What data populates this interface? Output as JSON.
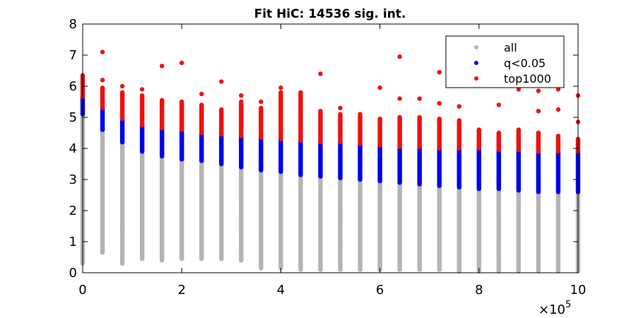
{
  "chart_data": {
    "type": "scatter",
    "title": "Fit HiC: 14536 sig. int.",
    "xlabel": "",
    "ylabel": "",
    "x_multiplier_label": "×10",
    "x_multiplier_exp": "5",
    "xlim": [
      0,
      10
    ],
    "ylim": [
      0,
      8
    ],
    "xticks": [
      0,
      2,
      4,
      6,
      8,
      10
    ],
    "yticks": [
      0,
      1,
      2,
      3,
      4,
      5,
      6,
      7,
      8
    ],
    "grid": false,
    "legend_position": "top-right",
    "colors": {
      "all": "#b4b4b4",
      "q": "#0000ee",
      "top": "#ee1111"
    },
    "legend": [
      "all",
      "q<0.05",
      "top1000"
    ],
    "series": [
      {
        "name": "all",
        "color": "#b4b4b4",
        "columns": [
          {
            "x": 0.0,
            "low": 0.3,
            "high": 5.1
          },
          {
            "x": 0.4,
            "low": 0.65,
            "high": 4.6
          },
          {
            "x": 0.8,
            "low": 0.3,
            "high": 4.2
          },
          {
            "x": 1.2,
            "low": 0.45,
            "high": 3.9
          },
          {
            "x": 1.6,
            "low": 0.4,
            "high": 3.75
          },
          {
            "x": 2.0,
            "low": 0.45,
            "high": 3.65
          },
          {
            "x": 2.4,
            "low": 0.45,
            "high": 3.6
          },
          {
            "x": 2.8,
            "low": 0.45,
            "high": 3.5
          },
          {
            "x": 3.2,
            "low": 0.4,
            "high": 3.4
          },
          {
            "x": 3.6,
            "low": 0.15,
            "high": 3.3
          },
          {
            "x": 4.0,
            "low": 0.15,
            "high": 3.25
          },
          {
            "x": 4.4,
            "low": 0.1,
            "high": 3.15
          },
          {
            "x": 4.8,
            "low": 0.1,
            "high": 3.1
          },
          {
            "x": 5.2,
            "low": 0.1,
            "high": 3.05
          },
          {
            "x": 5.6,
            "low": 0.1,
            "high": 3.0
          },
          {
            "x": 6.0,
            "low": 0.1,
            "high": 2.95
          },
          {
            "x": 6.4,
            "low": 0.1,
            "high": 2.9
          },
          {
            "x": 6.8,
            "low": 0.1,
            "high": 2.85
          },
          {
            "x": 7.2,
            "low": 0.1,
            "high": 2.8
          },
          {
            "x": 7.6,
            "low": 0.05,
            "high": 2.75
          },
          {
            "x": 8.0,
            "low": 0.05,
            "high": 2.7
          },
          {
            "x": 8.4,
            "low": 0.05,
            "high": 2.7
          },
          {
            "x": 8.8,
            "low": 0.05,
            "high": 2.65
          },
          {
            "x": 9.2,
            "low": 0.05,
            "high": 2.6
          },
          {
            "x": 9.6,
            "low": 0.05,
            "high": 2.6
          },
          {
            "x": 10.0,
            "low": 0.05,
            "high": 2.6
          }
        ]
      },
      {
        "name": "q<0.05",
        "color": "#0000ee",
        "columns": [
          {
            "x": 0.0,
            "low": 5.1,
            "high": 5.65
          },
          {
            "x": 0.4,
            "low": 4.6,
            "high": 5.3
          },
          {
            "x": 0.8,
            "low": 4.2,
            "high": 4.95
          },
          {
            "x": 1.2,
            "low": 3.9,
            "high": 4.75
          },
          {
            "x": 1.6,
            "low": 3.75,
            "high": 4.65
          },
          {
            "x": 2.0,
            "low": 3.65,
            "high": 4.6
          },
          {
            "x": 2.4,
            "low": 3.6,
            "high": 4.5
          },
          {
            "x": 2.8,
            "low": 3.5,
            "high": 4.45
          },
          {
            "x": 3.2,
            "low": 3.4,
            "high": 4.4
          },
          {
            "x": 3.6,
            "low": 3.3,
            "high": 4.35
          },
          {
            "x": 4.0,
            "low": 3.25,
            "high": 4.3
          },
          {
            "x": 4.4,
            "low": 3.15,
            "high": 4.25
          },
          {
            "x": 4.8,
            "low": 3.1,
            "high": 4.2
          },
          {
            "x": 5.2,
            "low": 3.05,
            "high": 4.2
          },
          {
            "x": 5.6,
            "low": 3.0,
            "high": 4.15
          },
          {
            "x": 6.0,
            "low": 2.95,
            "high": 4.1
          },
          {
            "x": 6.4,
            "low": 2.9,
            "high": 4.05
          },
          {
            "x": 6.8,
            "low": 2.85,
            "high": 4.05
          },
          {
            "x": 7.2,
            "low": 2.8,
            "high": 4.0
          },
          {
            "x": 7.6,
            "low": 2.75,
            "high": 4.0
          },
          {
            "x": 8.0,
            "low": 2.7,
            "high": 4.0
          },
          {
            "x": 8.4,
            "low": 2.7,
            "high": 3.95
          },
          {
            "x": 8.8,
            "low": 2.65,
            "high": 3.95
          },
          {
            "x": 9.2,
            "low": 2.6,
            "high": 3.9
          },
          {
            "x": 9.6,
            "low": 2.6,
            "high": 3.9
          },
          {
            "x": 10.0,
            "low": 2.6,
            "high": 3.9
          }
        ]
      },
      {
        "name": "top1000",
        "color": "#ee1111",
        "columns": [
          {
            "x": 0.0,
            "low": 5.65,
            "high": 6.35
          },
          {
            "x": 0.4,
            "low": 5.3,
            "high": 5.95
          },
          {
            "x": 0.8,
            "low": 4.95,
            "high": 5.8
          },
          {
            "x": 1.2,
            "low": 4.75,
            "high": 5.7
          },
          {
            "x": 1.6,
            "low": 4.65,
            "high": 5.55
          },
          {
            "x": 2.0,
            "low": 4.6,
            "high": 5.5
          },
          {
            "x": 2.4,
            "low": 4.5,
            "high": 5.4
          },
          {
            "x": 2.8,
            "low": 4.45,
            "high": 5.25
          },
          {
            "x": 3.2,
            "low": 4.4,
            "high": 5.5
          },
          {
            "x": 3.6,
            "low": 4.35,
            "high": 5.3
          },
          {
            "x": 4.0,
            "low": 4.3,
            "high": 5.8
          },
          {
            "x": 4.4,
            "low": 4.25,
            "high": 5.75
          },
          {
            "x": 4.8,
            "low": 4.2,
            "high": 5.2
          },
          {
            "x": 5.2,
            "low": 4.2,
            "high": 5.1
          },
          {
            "x": 5.6,
            "low": 4.15,
            "high": 5.1
          },
          {
            "x": 6.0,
            "low": 4.1,
            "high": 4.95
          },
          {
            "x": 6.4,
            "low": 4.05,
            "high": 5.0
          },
          {
            "x": 6.8,
            "low": 4.05,
            "high": 5.0
          },
          {
            "x": 7.2,
            "low": 4.0,
            "high": 4.95
          },
          {
            "x": 7.6,
            "low": 4.0,
            "high": 4.9
          },
          {
            "x": 8.0,
            "low": 4.0,
            "high": 4.6
          },
          {
            "x": 8.4,
            "low": 3.95,
            "high": 4.5
          },
          {
            "x": 8.8,
            "low": 3.95,
            "high": 4.6
          },
          {
            "x": 9.2,
            "low": 3.9,
            "high": 4.5
          },
          {
            "x": 9.6,
            "low": 3.9,
            "high": 4.4
          },
          {
            "x": 10.0,
            "low": 3.9,
            "high": 4.3
          }
        ],
        "outliers": [
          {
            "x": 0.4,
            "y": 7.1
          },
          {
            "x": 0.4,
            "y": 6.2
          },
          {
            "x": 0.8,
            "y": 6.0
          },
          {
            "x": 1.2,
            "y": 5.9
          },
          {
            "x": 1.6,
            "y": 6.65
          },
          {
            "x": 2.0,
            "y": 6.75
          },
          {
            "x": 2.4,
            "y": 5.75
          },
          {
            "x": 2.8,
            "y": 6.15
          },
          {
            "x": 3.2,
            "y": 5.7
          },
          {
            "x": 3.6,
            "y": 5.5
          },
          {
            "x": 4.0,
            "y": 5.95
          },
          {
            "x": 4.8,
            "y": 6.4
          },
          {
            "x": 5.2,
            "y": 5.3
          },
          {
            "x": 6.0,
            "y": 5.95
          },
          {
            "x": 6.4,
            "y": 6.95
          },
          {
            "x": 6.4,
            "y": 5.6
          },
          {
            "x": 6.8,
            "y": 5.6
          },
          {
            "x": 7.2,
            "y": 6.45
          },
          {
            "x": 7.2,
            "y": 5.45
          },
          {
            "x": 7.6,
            "y": 5.35
          },
          {
            "x": 8.4,
            "y": 5.4
          },
          {
            "x": 8.8,
            "y": 5.9
          },
          {
            "x": 9.2,
            "y": 5.85
          },
          {
            "x": 9.2,
            "y": 5.2
          },
          {
            "x": 9.6,
            "y": 5.9
          },
          {
            "x": 9.6,
            "y": 5.25
          },
          {
            "x": 10.0,
            "y": 5.7
          },
          {
            "x": 10.0,
            "y": 4.85
          },
          {
            "x": 4.4,
            "y": 5.8
          }
        ]
      }
    ]
  }
}
